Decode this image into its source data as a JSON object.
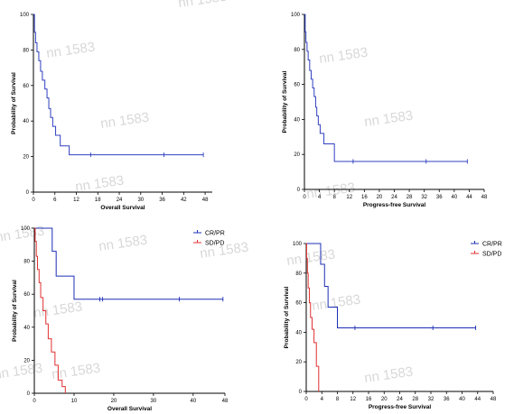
{
  "watermark": "nn 1583",
  "chart_data": [
    {
      "type": "line",
      "step": true,
      "xlabel": "Overall Survival",
      "ylabel": "Probability of Survival",
      "xlim": [
        0,
        50
      ],
      "ylim": [
        0,
        100
      ],
      "xticks": [
        0,
        6,
        12,
        18,
        24,
        30,
        36,
        42,
        48
      ],
      "yticks": [
        0,
        20,
        40,
        60,
        80,
        100
      ],
      "legend": null,
      "series": [
        {
          "color": "#3040c0",
          "x": [
            0,
            0.3,
            0.6,
            1.0,
            1.5,
            2.0,
            2.5,
            3.2,
            3.8,
            4.3,
            4.8,
            5.4,
            6.2,
            7.5,
            10
          ],
          "y": [
            100,
            90,
            84,
            79,
            74,
            68,
            63,
            58,
            53,
            47,
            42,
            37,
            32,
            26,
            21
          ],
          "censored": [
            [
              16,
              21
            ],
            [
              36.5,
              21
            ],
            [
              47.5,
              21
            ]
          ]
        }
      ]
    },
    {
      "type": "line",
      "step": true,
      "xlabel": "Progress-free Survival",
      "ylabel": "Probability of Survival",
      "xlim": [
        0,
        48
      ],
      "ylim": [
        0,
        100
      ],
      "xticks": [
        0,
        4,
        8,
        12,
        16,
        20,
        24,
        28,
        32,
        36,
        40,
        44,
        48
      ],
      "yticks": [
        0,
        20,
        40,
        60,
        80,
        100
      ],
      "legend": null,
      "series": [
        {
          "color": "#3040c0",
          "x": [
            0,
            0.2,
            0.4,
            0.7,
            1.0,
            1.4,
            1.8,
            2.2,
            2.6,
            3.0,
            3.3,
            3.7,
            4.2,
            5.2,
            8.0
          ],
          "y": [
            100,
            90,
            84,
            79,
            74,
            68,
            63,
            58,
            53,
            47,
            42,
            37,
            32,
            26,
            16
          ],
          "censored": [
            [
              13,
              16
            ],
            [
              32.5,
              16
            ],
            [
              43.5,
              16
            ]
          ]
        }
      ]
    },
    {
      "type": "line",
      "step": true,
      "xlabel": "Overall Survival",
      "ylabel": "Probability of Survival",
      "xlim": [
        0,
        48
      ],
      "ylim": [
        0,
        100
      ],
      "xticks": [
        0,
        10,
        20,
        30,
        40,
        48
      ],
      "yticks": [
        0,
        20,
        40,
        60,
        80,
        100
      ],
      "legend": "top-right",
      "series": [
        {
          "name": "CR/PR",
          "color": "#1c2fb5",
          "x": [
            0,
            4.5,
            5.5,
            10
          ],
          "y": [
            100,
            86,
            71,
            57
          ],
          "censored": [
            [
              16.5,
              57
            ],
            [
              17.2,
              57
            ],
            [
              36.5,
              57
            ],
            [
              47.5,
              57
            ]
          ]
        },
        {
          "name": "SD/PD",
          "color": "#e03030",
          "x": [
            0,
            0.2,
            0.5,
            0.8,
            1.2,
            1.6,
            2.2,
            2.9,
            3.5,
            4.3,
            5.2,
            6.0,
            7.0,
            7.8
          ],
          "y": [
            100,
            92,
            83,
            75,
            67,
            58,
            50,
            42,
            33,
            25,
            17,
            8,
            4,
            0
          ],
          "censored": []
        }
      ]
    },
    {
      "type": "line",
      "step": true,
      "xlabel": "Progress-free Survival",
      "ylabel": "Probability of Survival",
      "xlim": [
        0,
        48
      ],
      "ylim": [
        0,
        100
      ],
      "xticks": [
        0,
        4,
        8,
        12,
        16,
        20,
        24,
        28,
        32,
        36,
        40,
        44,
        48
      ],
      "yticks": [
        0,
        20,
        40,
        60,
        80,
        100
      ],
      "legend": "top-right",
      "series": [
        {
          "name": "CR/PR",
          "color": "#1c2fb5",
          "x": [
            0,
            3.7,
            4.7,
            5.6,
            8.0
          ],
          "y": [
            100,
            86,
            71,
            57,
            43
          ],
          "censored": [
            [
              12.5,
              43
            ],
            [
              32.5,
              43
            ],
            [
              43.5,
              43
            ]
          ]
        },
        {
          "name": "SD/PD",
          "color": "#e03030",
          "x": [
            0,
            0.1,
            0.3,
            0.5,
            0.8,
            1.1,
            1.5,
            2.0,
            2.6,
            3.2
          ],
          "y": [
            100,
            90,
            80,
            70,
            60,
            50,
            42,
            33,
            17,
            0
          ],
          "censored": []
        }
      ]
    }
  ]
}
